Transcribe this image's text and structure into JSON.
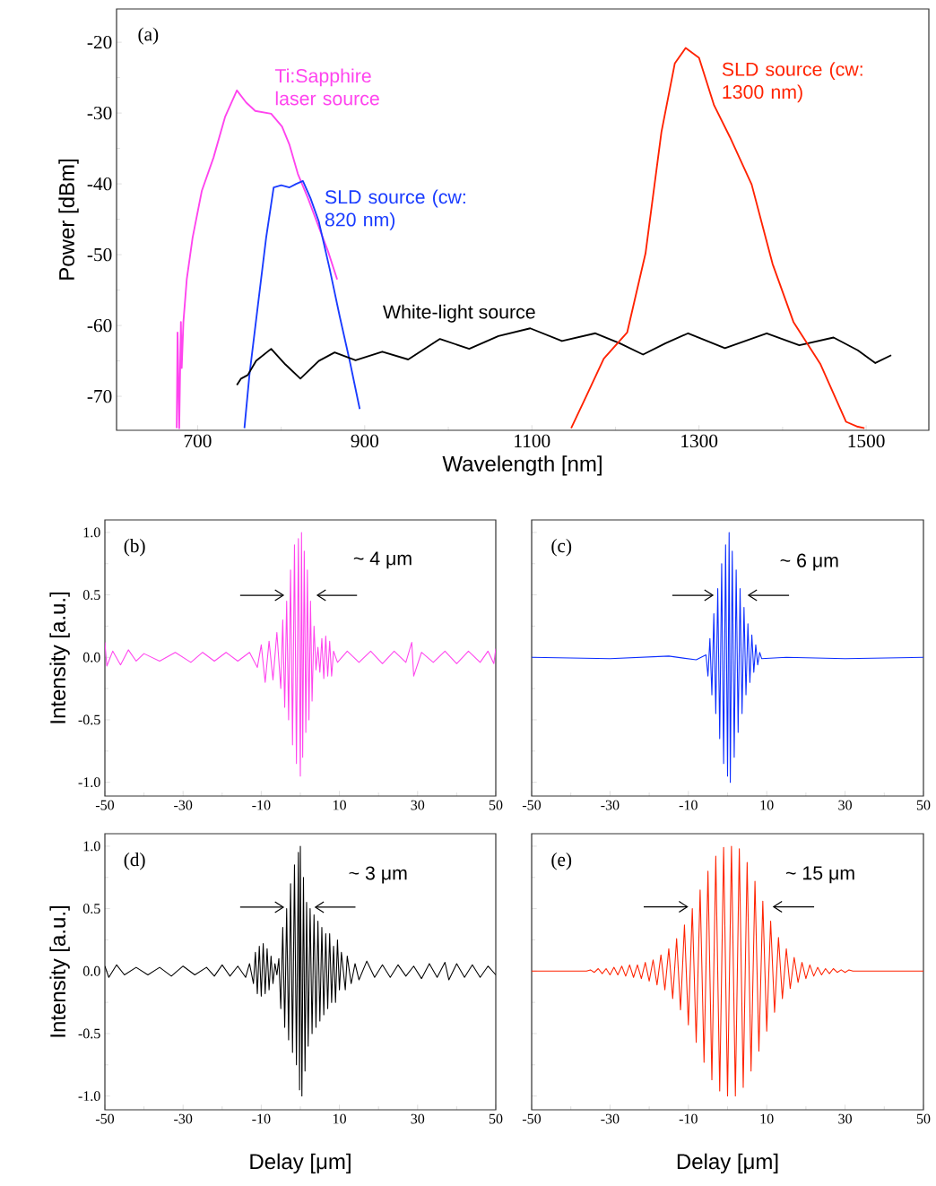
{
  "chart_data": [
    {
      "type": "line",
      "xlabel": "Wavelength [nm]",
      "ylabel": "Power [dBm]",
      "annotations": [
        "(a)"
      ],
      "xlim": [
        603,
        1575
      ],
      "ylim": [
        -74.8,
        -15.3
      ],
      "xticks": [
        700,
        900,
        1100,
        1300,
        1500
      ],
      "yticks": [
        -70,
        -60,
        -50,
        -40,
        -30,
        -20
      ],
      "series": [
        {
          "name": "Ti:Sapphire laser source",
          "color": "#ff44ee",
          "x": [
            675,
            676,
            678,
            680,
            681,
            683,
            687,
            694,
            705,
            719,
            733,
            747,
            758,
            769,
            788,
            801,
            810,
            820,
            832,
            845,
            856,
            867
          ],
          "values": [
            -74.5,
            -61,
            -74.5,
            -59.5,
            -66,
            -59.5,
            -53.5,
            -47.6,
            -41,
            -36.3,
            -30.5,
            -26.8,
            -28.5,
            -29.7,
            -30.1,
            -31.9,
            -34.5,
            -38.6,
            -42,
            -46.1,
            -49.5,
            -53.5
          ]
        },
        {
          "name": "SLD source (cw: 820 nm)",
          "color": "#1a3cff",
          "x": [
            756,
            762,
            769,
            782,
            791,
            800,
            810,
            818,
            826,
            835,
            845,
            858,
            870,
            882,
            894
          ],
          "values": [
            -74.5,
            -67,
            -60.2,
            -47.6,
            -40.5,
            -40.2,
            -40.5,
            -40,
            -39.6,
            -42,
            -45.3,
            -52,
            -58.7,
            -65,
            -71.8
          ]
        },
        {
          "name": "White-light source",
          "color": "#000000",
          "x": [
            747,
            752,
            760,
            770,
            788,
            805,
            823,
            845,
            864,
            889,
            921,
            952,
            990,
            1025,
            1060,
            1098,
            1136,
            1176,
            1205,
            1233,
            1260,
            1287,
            1331,
            1381,
            1420,
            1461,
            1490,
            1511,
            1530
          ],
          "values": [
            -68.4,
            -67.5,
            -67,
            -65,
            -63.3,
            -65.5,
            -67.5,
            -65,
            -63.8,
            -64.9,
            -63.7,
            -64.8,
            -61.9,
            -63.3,
            -61.5,
            -60.4,
            -62.2,
            -61.1,
            -62.5,
            -64.1,
            -62.5,
            -61.1,
            -63.2,
            -61.1,
            -62.8,
            -61.7,
            -63.5,
            -65.3,
            -64.2
          ]
        },
        {
          "name": "SLD source (cw: 1300 nm)",
          "color": "#ff2200",
          "x": [
            1147,
            1165,
            1186,
            1214,
            1236,
            1255,
            1271,
            1284,
            1300,
            1318,
            1337,
            1363,
            1388,
            1413,
            1445,
            1476,
            1490,
            1498
          ],
          "values": [
            -74.5,
            -70,
            -64.7,
            -61,
            -49.8,
            -32.7,
            -23,
            -20.8,
            -22.2,
            -28.9,
            -33.4,
            -40.1,
            -51.3,
            -59.5,
            -65.4,
            -73.6,
            -74.3,
            -74.5
          ]
        }
      ]
    },
    {
      "type": "line",
      "ylabel": "Intensity [a.u.]",
      "annotations": [
        "(b)",
        "~ 4 μm"
      ],
      "xlim": [
        -50,
        50
      ],
      "ylim": [
        -1.11,
        1.1
      ],
      "xticks": [
        -50,
        -30,
        -10,
        10,
        30,
        50
      ],
      "yticks": [
        {
          "value": -1,
          "label": "-1.0"
        },
        {
          "value": -0.5,
          "label": "-0.5"
        },
        {
          "value": 0,
          "label": "0.0"
        },
        {
          "value": 0.5,
          "label": "0.5"
        },
        {
          "value": 1,
          "label": "1.0"
        }
      ],
      "series": [
        {
          "color": "#ff44ee",
          "x": [
            -50,
            -49.5,
            -48,
            -46,
            -44,
            -42,
            -40,
            -36,
            -32,
            -28,
            -25,
            -22,
            -19,
            -16,
            -13,
            -11,
            -10,
            -9,
            -8,
            -7,
            -6,
            -5,
            -4.5,
            -4,
            -3.5,
            -3,
            -2.5,
            -2,
            -1.5,
            -1,
            -0.5,
            0,
            0.3,
            0.6,
            1,
            1.4,
            1.8,
            2.2,
            2.6,
            3,
            3.5,
            4,
            4.5,
            5,
            5.5,
            6,
            6.5,
            7,
            7.5,
            8,
            8.5,
            9.5,
            12,
            15,
            18,
            21,
            24,
            27,
            28.5,
            29,
            31,
            34,
            37,
            40,
            43,
            46,
            48,
            49.5,
            50
          ],
          "values": [
            0.12,
            -0.07,
            0.05,
            -0.06,
            0.06,
            -0.03,
            0.03,
            -0.03,
            0.04,
            -0.04,
            0.04,
            -0.03,
            0.04,
            -0.03,
            0.04,
            -0.08,
            0.1,
            -0.2,
            0.13,
            -0.18,
            0.2,
            -0.25,
            0.3,
            -0.4,
            0.45,
            -0.5,
            0.7,
            -0.7,
            0.9,
            -0.85,
            0.95,
            -0.95,
            1.0,
            -0.8,
            0.85,
            -0.6,
            0.7,
            -0.5,
            0.45,
            -0.35,
            0.25,
            -0.1,
            0.08,
            -0.12,
            0.15,
            -0.17,
            0.17,
            -0.15,
            0.13,
            -0.15,
            0.05,
            -0.04,
            0.05,
            -0.04,
            0.05,
            -0.05,
            0.05,
            -0.04,
            0.12,
            -0.15,
            0.04,
            -0.04,
            0.05,
            -0.05,
            0.05,
            -0.04,
            0.05,
            -0.05,
            0.07
          ]
        }
      ]
    },
    {
      "type": "line",
      "annotations": [
        "(c)",
        "~ 6 μm"
      ],
      "xlim": [
        -50,
        50
      ],
      "ylim": [
        -1.11,
        1.1
      ],
      "xticks": [
        -50,
        -30,
        -10,
        10,
        30,
        50
      ],
      "yticks": [
        -1,
        -0.5,
        0,
        0.5,
        1
      ],
      "tick_labels": "x",
      "series": [
        {
          "color": "#0a2cff",
          "x": [
            -50,
            -30,
            -15,
            -8,
            -5.5,
            -5,
            -4.5,
            -4,
            -3.5,
            -3,
            -2.5,
            -2,
            -1.5,
            -1,
            -0.5,
            0,
            0.4,
            0.7,
            1.2,
            1.7,
            2.2,
            2.7,
            3.2,
            3.7,
            4.2,
            4.7,
            5.2,
            5.7,
            6.2,
            6.7,
            7.2,
            7.7,
            8.2,
            8.7,
            15,
            30,
            50
          ],
          "values": [
            0,
            -0.01,
            0.01,
            -0.02,
            0.02,
            -0.15,
            0.15,
            -0.3,
            0.35,
            -0.45,
            0.55,
            -0.65,
            0.75,
            -0.85,
            0.9,
            -0.95,
            1.0,
            -1.0,
            0.85,
            -0.8,
            0.7,
            -0.6,
            0.55,
            -0.45,
            0.4,
            -0.3,
            0.27,
            -0.2,
            0.18,
            -0.12,
            0.1,
            -0.06,
            0.04,
            -0.01,
            0,
            -0.01,
            0
          ]
        }
      ]
    },
    {
      "type": "line",
      "xlabel": "Delay [μm]",
      "ylabel": "Intensity [a.u.]",
      "annotations": [
        "(d)",
        "~ 3 μm"
      ],
      "xlim": [
        -50,
        50
      ],
      "ylim": [
        -1.11,
        1.1
      ],
      "xticks": [
        -50,
        -30,
        -10,
        10,
        30,
        50
      ],
      "yticks": [
        {
          "value": -1,
          "label": "-1.0"
        },
        {
          "value": -0.5,
          "label": "-0.5"
        },
        {
          "value": 0,
          "label": "0.0"
        },
        {
          "value": 0.5,
          "label": "0.5"
        },
        {
          "value": 1,
          "label": "1.0"
        }
      ],
      "series": [
        {
          "color": "#000000",
          "x": [
            -50,
            -49,
            -47,
            -45,
            -42,
            -39,
            -36,
            -33,
            -30,
            -27,
            -24,
            -22,
            -20,
            -18,
            -16,
            -14,
            -13,
            -12,
            -11.5,
            -11,
            -10.5,
            -10,
            -9.5,
            -9,
            -8.5,
            -8,
            -7.5,
            -7,
            -6.5,
            -6,
            -5.5,
            -5,
            -4.5,
            -4,
            -3.5,
            -3,
            -2.5,
            -2,
            -1.5,
            -1,
            -0.5,
            -0.2,
            0,
            0.4,
            0.8,
            1.2,
            1.6,
            2,
            2.5,
            3,
            3.5,
            4,
            4.5,
            5,
            5.5,
            6,
            6.5,
            7,
            7.5,
            8,
            8.5,
            9,
            9.5,
            10,
            10.5,
            11.5,
            12,
            13,
            14,
            15,
            17,
            19,
            21,
            23,
            25,
            27,
            29,
            31,
            33,
            35,
            37,
            38,
            40,
            42,
            44,
            46,
            48,
            50
          ],
          "values": [
            0.04,
            -0.05,
            0.05,
            -0.03,
            0.03,
            -0.03,
            0.03,
            -0.04,
            0.04,
            -0.03,
            0.03,
            -0.04,
            0.05,
            -0.04,
            0.04,
            -0.05,
            0.06,
            -0.1,
            0.15,
            -0.18,
            0.2,
            -0.2,
            0.22,
            -0.18,
            0.18,
            -0.15,
            0.12,
            -0.1,
            0.06,
            -0.03,
            0.1,
            -0.3,
            0.35,
            -0.45,
            0.5,
            -0.55,
            0.7,
            -0.65,
            0.85,
            -0.75,
            0.95,
            -0.95,
            1.0,
            -1.0,
            0.75,
            -0.8,
            0.55,
            -0.6,
            0.5,
            -0.5,
            0.45,
            -0.45,
            0.4,
            -0.4,
            0.35,
            -0.35,
            0.3,
            -0.3,
            0.3,
            -0.25,
            0.2,
            -0.25,
            0.25,
            -0.15,
            0.15,
            -0.15,
            0.12,
            -0.1,
            0.06,
            -0.07,
            0.08,
            -0.05,
            0.05,
            -0.05,
            0.05,
            -0.04,
            0.04,
            -0.06,
            0.06,
            -0.05,
            0.07,
            -0.07,
            0.06,
            -0.05,
            0.05,
            -0.05,
            0.04,
            -0.03
          ]
        }
      ]
    },
    {
      "type": "line",
      "xlabel": "Delay [μm]",
      "annotations": [
        "(e)",
        "~ 15 μm"
      ],
      "xlim": [
        -50,
        50
      ],
      "ylim": [
        -1.11,
        1.1
      ],
      "xticks": [
        -50,
        -30,
        -10,
        10,
        30,
        50
      ],
      "yticks": [
        -1,
        -0.5,
        0,
        0.5,
        1
      ],
      "tick_labels": "x",
      "series": [
        {
          "color": "#ff2200",
          "x": [
            -50,
            -36,
            -35,
            -34,
            -33,
            -32,
            -31,
            -30,
            -29,
            -28,
            -27,
            -26,
            -25,
            -24,
            -23,
            -22,
            -21,
            -20,
            -19,
            -18,
            -17,
            -16,
            -15,
            -14,
            -13,
            -12,
            -11,
            -10,
            -9,
            -8,
            -7,
            -6,
            -5,
            -4,
            -3,
            -2,
            -1,
            0,
            1,
            2,
            3,
            4,
            5,
            6,
            7,
            8,
            9,
            10,
            11,
            12,
            13,
            14,
            15,
            16,
            17,
            18,
            19,
            20,
            21,
            22,
            23,
            24,
            25,
            26,
            27,
            28,
            29,
            30,
            31,
            32,
            50
          ],
          "values": [
            0,
            0,
            0.01,
            -0.01,
            0.02,
            -0.02,
            0.02,
            -0.03,
            0.03,
            -0.03,
            0.04,
            -0.04,
            0.05,
            -0.05,
            0.05,
            -0.06,
            0.07,
            -0.08,
            0.09,
            -0.11,
            0.13,
            -0.15,
            0.18,
            -0.22,
            0.26,
            -0.31,
            0.37,
            -0.43,
            0.5,
            -0.57,
            0.65,
            -0.73,
            0.8,
            -0.87,
            0.92,
            -0.96,
            0.99,
            -1.0,
            1.0,
            -1.0,
            0.98,
            -0.93,
            0.87,
            -0.8,
            0.72,
            -0.64,
            0.56,
            -0.48,
            0.4,
            -0.33,
            0.27,
            -0.22,
            0.18,
            -0.14,
            0.11,
            -0.09,
            0.07,
            -0.06,
            0.05,
            -0.04,
            0.03,
            -0.03,
            0.02,
            -0.02,
            0.02,
            -0.01,
            0.01,
            -0.01,
            0.01,
            0,
            0
          ]
        }
      ]
    }
  ]
}
